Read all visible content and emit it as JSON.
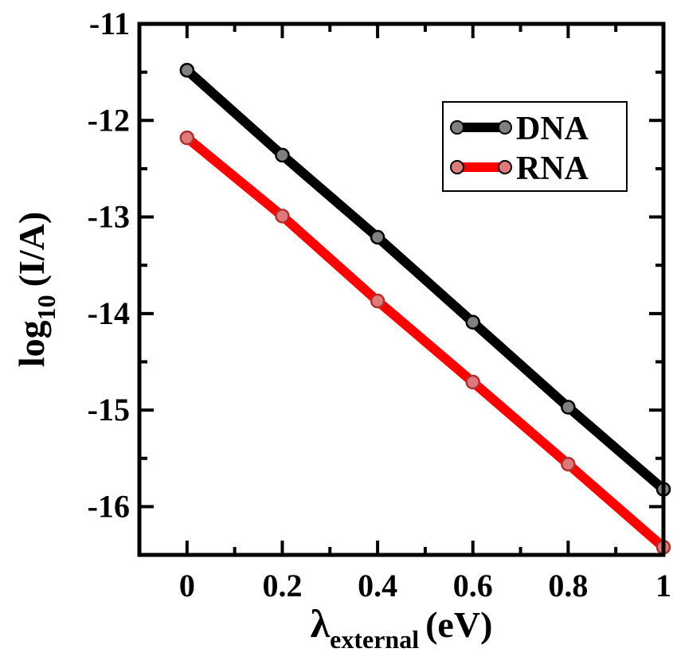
{
  "chart_data": {
    "type": "line",
    "xlabel": {
      "symbol": "λ",
      "subscript": "external",
      "unit": "(eV)"
    },
    "ylabel": {
      "prefix": "log",
      "subscript": "10",
      "suffix": "(I/A)"
    },
    "xlim": [
      -0.1,
      1.0
    ],
    "ylim": [
      -16.5,
      -11.0
    ],
    "x_ticks": [
      0,
      0.2,
      0.4,
      0.6,
      0.8,
      1
    ],
    "x_tick_labels": [
      "0",
      "0.2",
      "0.4",
      "0.6",
      "0.8",
      "1"
    ],
    "y_ticks": [
      -16,
      -15,
      -14,
      -13,
      -12,
      -11
    ],
    "y_tick_labels": [
      "-16",
      "-15",
      "-14",
      "-13",
      "-12",
      "-11"
    ],
    "legend_position": "top-right",
    "x": [
      0,
      0.2,
      0.4,
      0.6,
      0.8,
      1.0
    ],
    "series": [
      {
        "name": "DNA",
        "color": "#000000",
        "marker_color": "#808080",
        "values": [
          -11.48,
          -12.36,
          -13.21,
          -14.09,
          -14.97,
          -15.82
        ]
      },
      {
        "name": "RNA",
        "color": "#ff0000",
        "marker_color": "#e07a7a",
        "values": [
          -12.18,
          -12.99,
          -13.87,
          -14.71,
          -15.56,
          -16.42
        ]
      }
    ]
  }
}
